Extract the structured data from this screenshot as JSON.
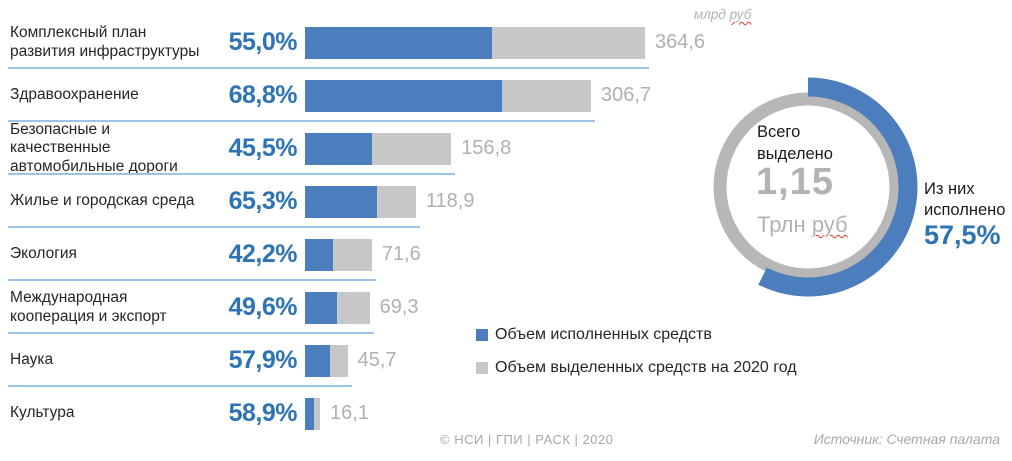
{
  "units_label": "млрд руб",
  "chart_data": {
    "type": "bar",
    "orientation": "horizontal",
    "value_unit": "млрд руб",
    "categories": [
      "Комплексный план развития инфраструктуры",
      "Здравоохранение",
      "Безопасные и качественные автомобильные дороги",
      "Жилье и городская среда",
      "Экология",
      "Международная кооперация и экспорт",
      "Наука",
      "Культура"
    ],
    "series": [
      {
        "name": "Объем исполненных средств",
        "unit": "percent_of_allocated",
        "values": [
          55.0,
          68.8,
          45.5,
          65.3,
          42.2,
          49.6,
          57.9,
          58.9
        ],
        "color": "#4c7ebd"
      },
      {
        "name": "Объем выделенных средств на 2020 год",
        "unit": "млрд руб",
        "values": [
          364.6,
          306.7,
          156.8,
          118.9,
          71.6,
          69.3,
          45.7,
          16.1
        ],
        "color": "#c7c7c7"
      }
    ],
    "percent_labels": [
      "55,0%",
      "68,8%",
      "45,5%",
      "65,3%",
      "42,2%",
      "49,6%",
      "57,9%",
      "58,9%"
    ],
    "value_labels": [
      "364,6",
      "306,7",
      "156,8",
      "118,9",
      "71,6",
      "69,3",
      "45,7",
      "16,1"
    ],
    "xlim": [
      0,
      364.6
    ],
    "grid": false,
    "legend_position": "bottom-center"
  },
  "donut": {
    "type": "donut",
    "percent": 57.5,
    "center_title": "Всего выделено",
    "center_value": "1,15",
    "center_unit": "Трлн руб",
    "callout_label": "Из них исполнено",
    "callout_value": "57,5%",
    "ring_color": "#b7b7b7",
    "arc_color": "#4c7ebd"
  },
  "legend": {
    "items": [
      {
        "label": "Объем исполненных средств",
        "color": "#4c7ebd"
      },
      {
        "label": "Объем выделенных средств на 2020 год",
        "color": "#c7c7c7"
      }
    ]
  },
  "footer": {
    "credits": "© НСИ | ГПИ | РАСК | 2020",
    "source": "Источник: Счетная палата"
  },
  "colors": {
    "percent_text": "#2e74b5",
    "value_text": "#b0b0b0",
    "separator": "#9dc3e6",
    "spellcheck_underline": "#e0382e"
  }
}
